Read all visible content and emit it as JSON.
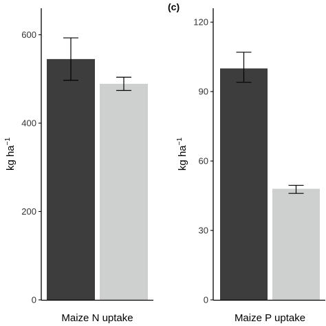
{
  "colors": {
    "dark_bar": "#3d3d3d",
    "light_bar": "#cdd0cf",
    "axis": "#000000"
  },
  "chart_data": [
    {
      "type": "bar",
      "panel_label": "",
      "xlabel": "Maize N uptake",
      "ylabel_base": "kg ha",
      "ylabel_sup": "−1",
      "ylim": [
        0,
        660
      ],
      "yticks": [
        0,
        200,
        400,
        600
      ],
      "grid": false,
      "series": [
        {
          "value": 545,
          "error": [
            497,
            593
          ],
          "color": "#3d3d3d"
        },
        {
          "value": 489,
          "error": [
            474,
            504
          ],
          "color": "#cdd0cf"
        }
      ]
    },
    {
      "type": "bar",
      "panel_label": "(c)",
      "xlabel": "Maize P uptake",
      "ylabel_base": "kg ha",
      "ylabel_sup": "−1",
      "ylim": [
        0,
        126
      ],
      "yticks": [
        0,
        30,
        60,
        90,
        120
      ],
      "grid": false,
      "series": [
        {
          "value": 100,
          "error": [
            94,
            107
          ],
          "color": "#3d3d3d"
        },
        {
          "value": 48,
          "error": [
            46,
            49.5
          ],
          "color": "#cdd0cf"
        }
      ]
    }
  ]
}
